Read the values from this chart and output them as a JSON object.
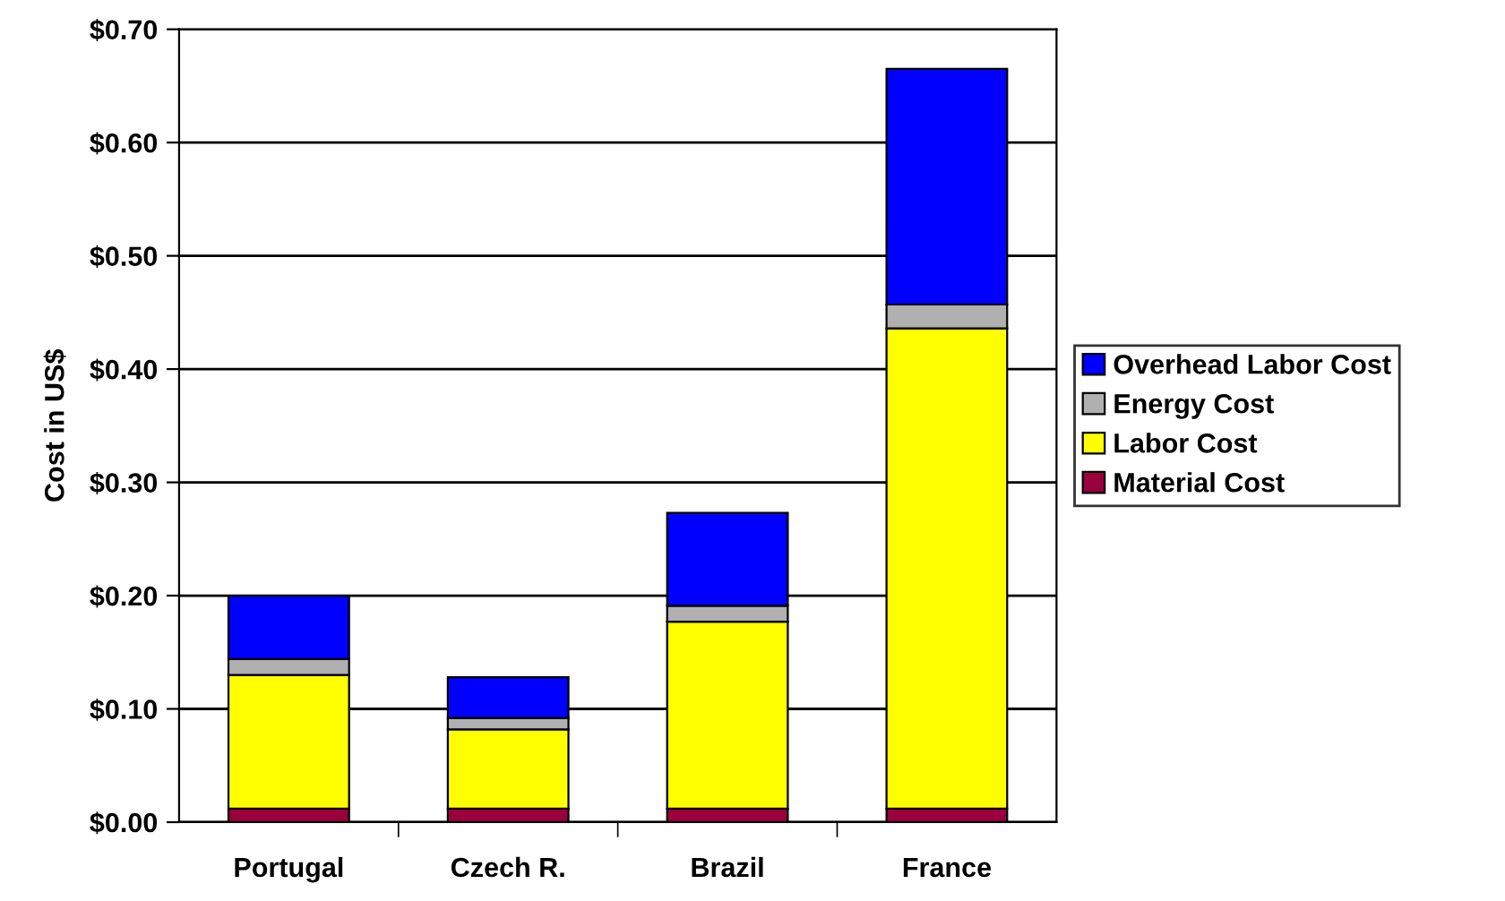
{
  "chart_data": {
    "type": "bar",
    "stacked": true,
    "ylabel": "Cost in US$",
    "categories": [
      "Portugal",
      "Czech R.",
      "Brazil",
      "France"
    ],
    "series": [
      {
        "name": "Material Cost",
        "color": "#99003c",
        "values": [
          0.012,
          0.012,
          0.012,
          0.012
        ]
      },
      {
        "name": "Labor Cost",
        "color": "#ffff00",
        "values": [
          0.118,
          0.07,
          0.165,
          0.424
        ]
      },
      {
        "name": "Energy Cost",
        "color": "#b0b0b0",
        "values": [
          0.014,
          0.01,
          0.014,
          0.021
        ]
      },
      {
        "name": "Overhead Labor Cost",
        "color": "#0000ff",
        "values": [
          0.056,
          0.036,
          0.082,
          0.208
        ]
      }
    ],
    "ylim": [
      0,
      0.7
    ],
    "yticks": [
      {
        "value": 0,
        "label": "$0.00"
      },
      {
        "value": 0.1,
        "label": "$0.10"
      },
      {
        "value": 0.2,
        "label": "$0.20"
      },
      {
        "value": 0.3,
        "label": "$0.30"
      },
      {
        "value": 0.4,
        "label": "$0.40"
      },
      {
        "value": 0.5,
        "label": "$0.50"
      },
      {
        "value": 0.6,
        "label": "$0.60"
      },
      {
        "value": 0.7,
        "label": "$0.70"
      }
    ],
    "grid": "y",
    "legend": "right"
  }
}
